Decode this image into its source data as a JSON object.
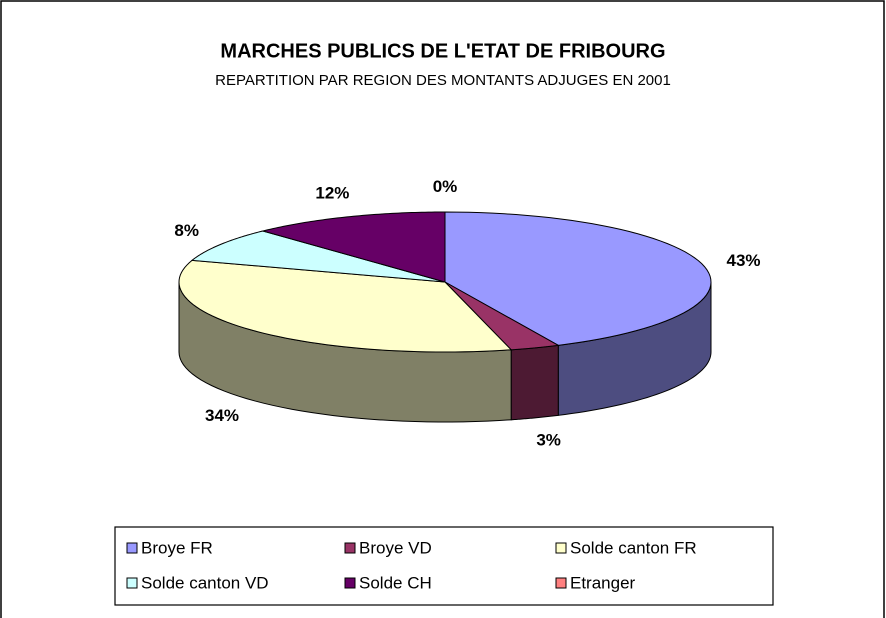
{
  "chart_data": {
    "type": "pie3d",
    "title": "MARCHES PUBLICS DE L'ETAT DE FRIBOURG",
    "subtitle": "REPARTITION PAR REGION DES MONTANTS ADJUGES EN 2001",
    "categories": [
      "Broye FR",
      "Broye VD",
      "Solde canton FR",
      "Solde canton VD",
      "Solde CH",
      "Etranger"
    ],
    "values": [
      43,
      3,
      34,
      8,
      12,
      0
    ],
    "value_labels": [
      "43%",
      "3%",
      "34%",
      "8%",
      "12%",
      "0%"
    ],
    "colors": [
      "#9999ff",
      "#993366",
      "#ffffcc",
      "#ccffff",
      "#660066",
      "#ff8080"
    ],
    "legend": "bottom"
  }
}
